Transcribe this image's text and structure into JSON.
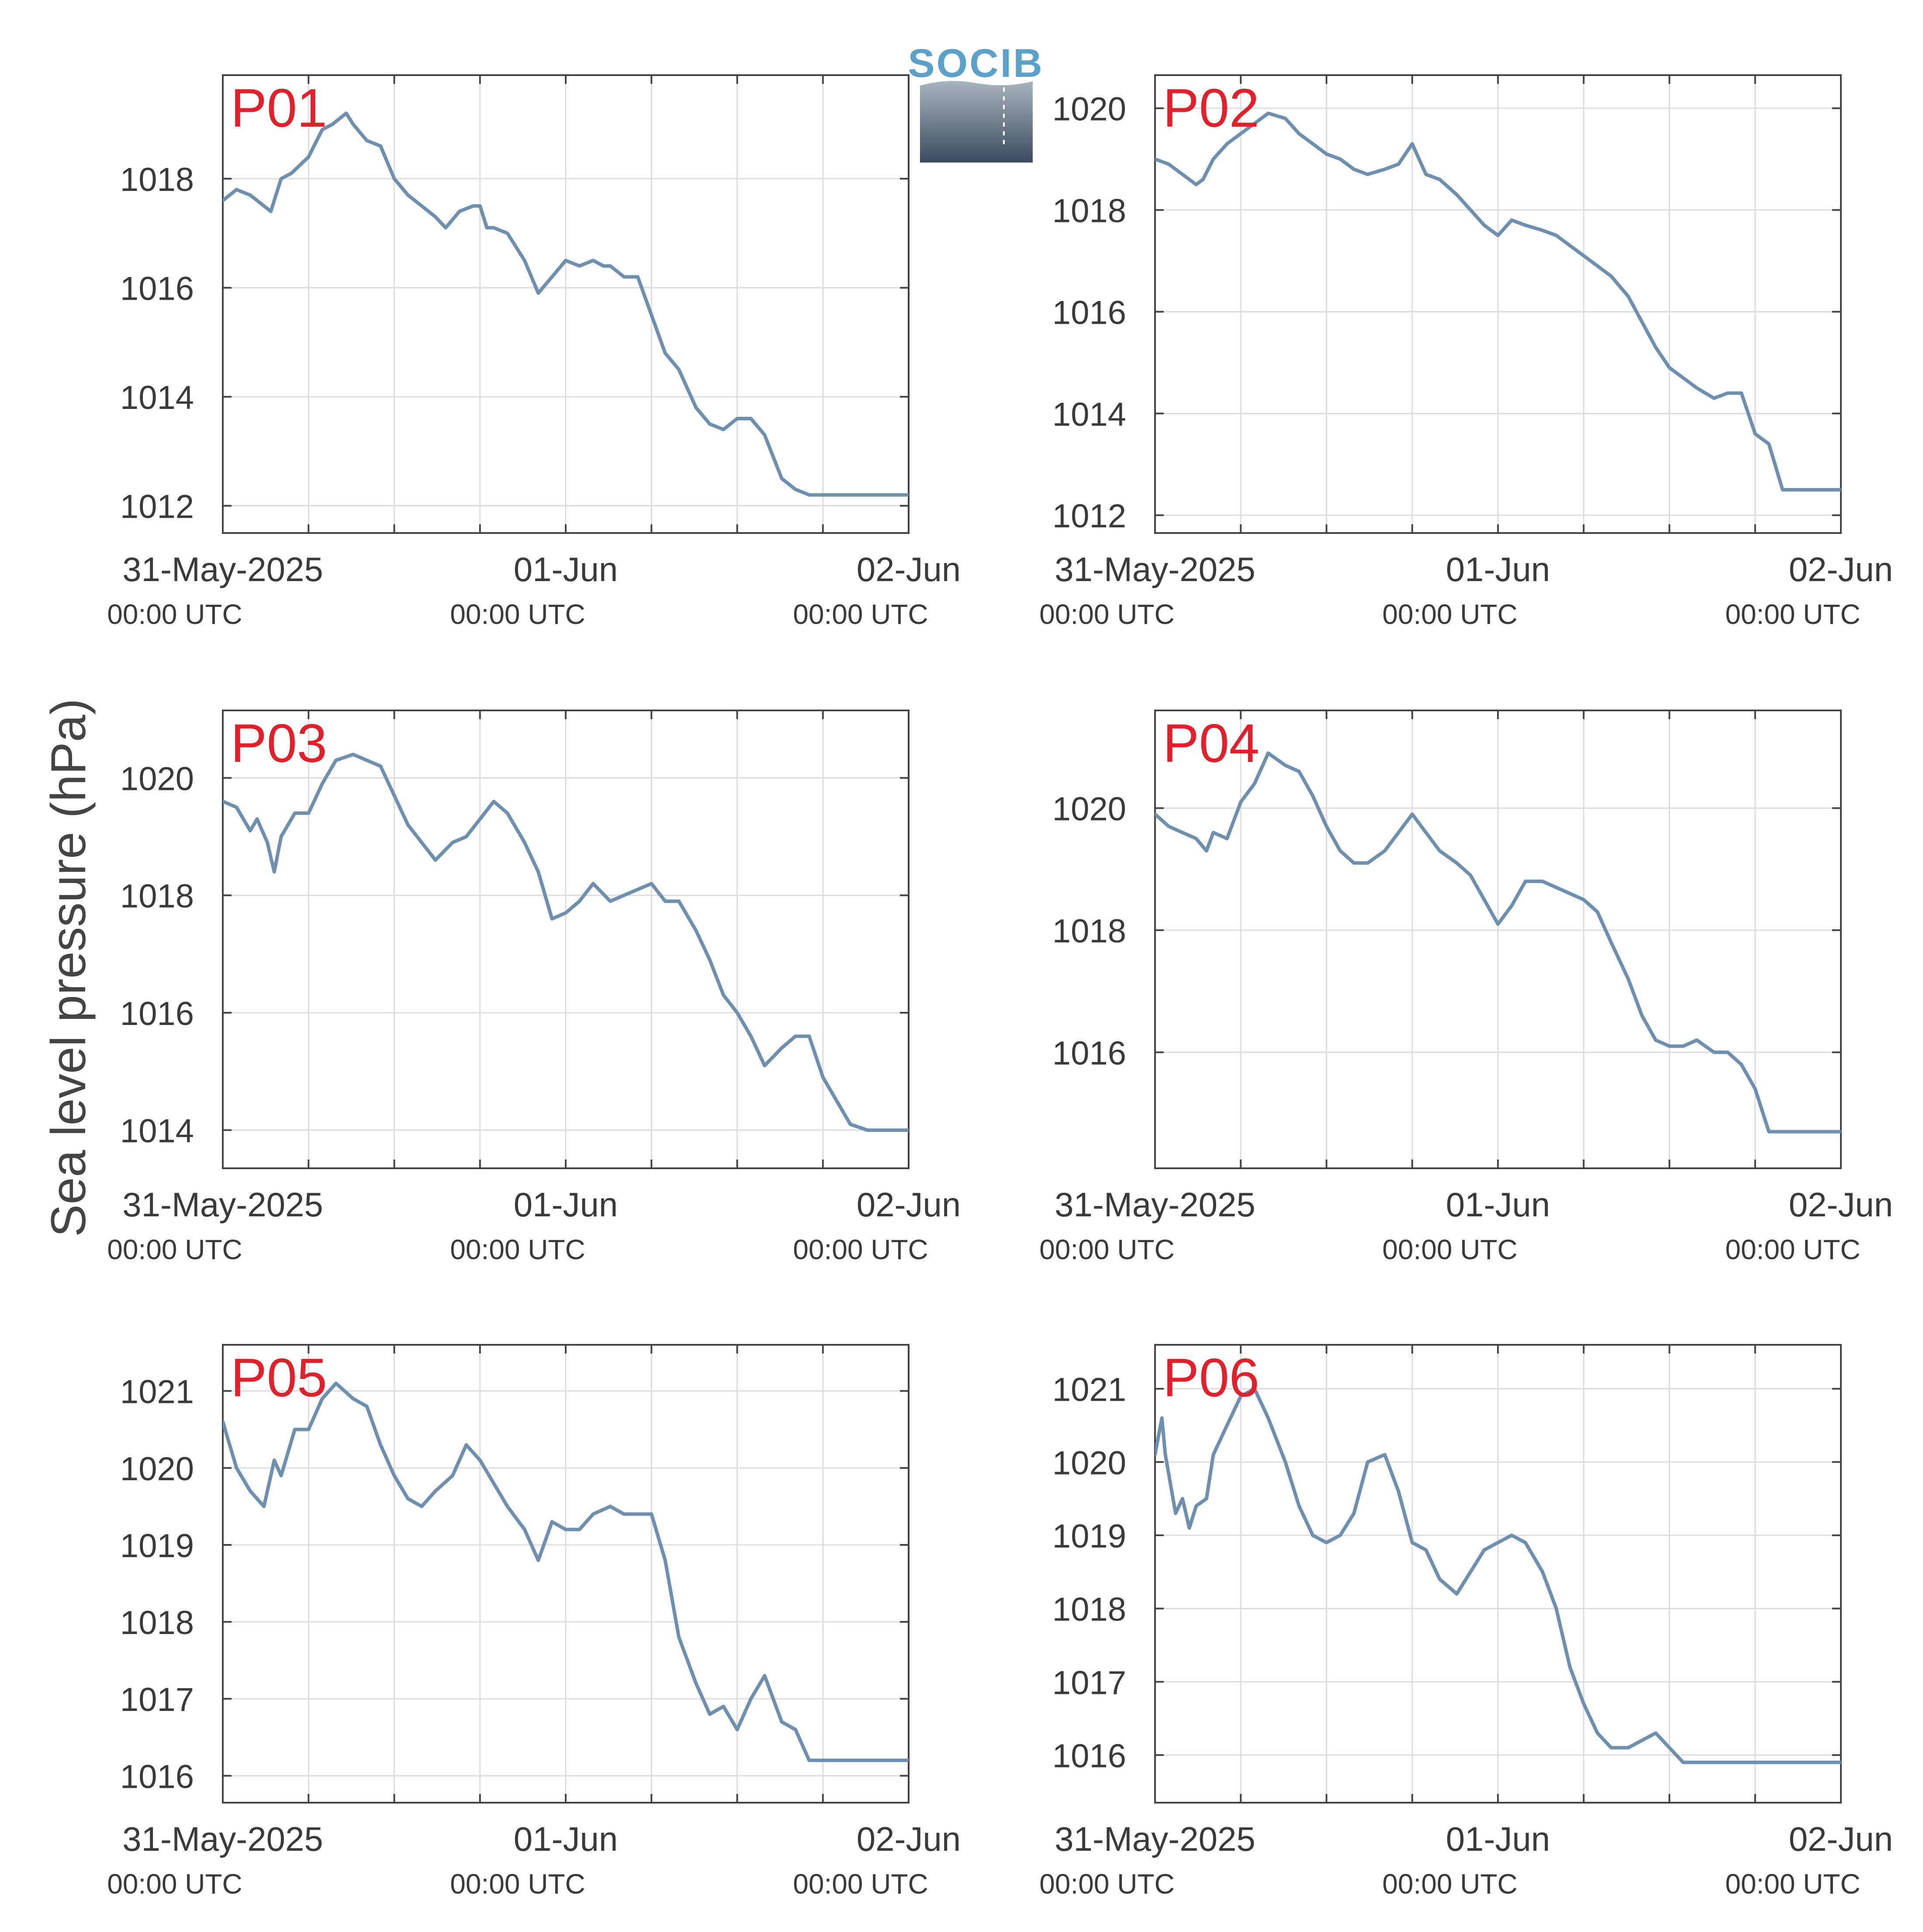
{
  "ylabel": "Sea level pressure (hPa)",
  "logo": {
    "text": "SOCIB",
    "colors": {
      "top": "#a9b4be",
      "bottom": "#3a4b5e",
      "text": "#5aa0c8"
    }
  },
  "colors": {
    "line": "#6f8fae",
    "grid": "#dddddd",
    "axis": "#444444",
    "panel_label": "#e0202a",
    "tick_text": "#3a3a3a"
  },
  "chart_data": [
    {
      "type": "line",
      "label": "P01",
      "x_ticks": [
        {
          "day": 0,
          "date": "31-May-2025",
          "time": "00:00 UTC"
        },
        {
          "day": 1,
          "date": "01-Jun",
          "time": "00:00 UTC"
        },
        {
          "day": 2,
          "date": "02-Jun",
          "time": "00:00 UTC"
        }
      ],
      "xlim": [
        0,
        2
      ],
      "ylim": [
        1011.5,
        1019.9
      ],
      "y_ticks": [
        1012,
        1014,
        1016,
        1018
      ],
      "x": [
        0,
        0.04,
        0.08,
        0.12,
        0.14,
        0.17,
        0.2,
        0.25,
        0.29,
        0.32,
        0.36,
        0.38,
        0.42,
        0.46,
        0.5,
        0.54,
        0.58,
        0.62,
        0.65,
        0.69,
        0.73,
        0.75,
        0.77,
        0.79,
        0.83,
        0.88,
        0.92,
        0.96,
        1.0,
        1.04,
        1.08,
        1.11,
        1.13,
        1.17,
        1.21,
        1.25,
        1.29,
        1.33,
        1.38,
        1.42,
        1.46,
        1.5,
        1.54,
        1.58,
        1.63,
        1.67,
        1.71,
        1.75,
        1.79,
        1.83,
        1.88,
        1.92,
        1.96,
        2.0
      ],
      "y": [
        1017.6,
        1017.8,
        1017.7,
        1017.5,
        1017.4,
        1018.0,
        1018.1,
        1018.4,
        1018.9,
        1019.0,
        1019.2,
        1019.0,
        1018.7,
        1018.6,
        1018.0,
        1017.7,
        1017.5,
        1017.3,
        1017.1,
        1017.4,
        1017.5,
        1017.5,
        1017.1,
        1017.1,
        1017.0,
        1016.5,
        1015.9,
        1016.2,
        1016.5,
        1016.4,
        1016.5,
        1016.4,
        1016.4,
        1016.2,
        1016.2,
        1015.5,
        1014.8,
        1014.5,
        1013.8,
        1013.5,
        1013.4,
        1013.6,
        1013.6,
        1013.3,
        1012.5,
        1012.3,
        1012.2,
        1012.2,
        1012.2,
        1012.2,
        1012.2,
        1012.2,
        1012.2,
        1012.2
      ]
    },
    {
      "type": "line",
      "label": "P02",
      "x_ticks": [
        {
          "day": 0,
          "date": "31-May-2025",
          "time": "00:00 UTC"
        },
        {
          "day": 1,
          "date": "01-Jun",
          "time": "00:00 UTC"
        },
        {
          "day": 2,
          "date": "02-Jun",
          "time": "00:00 UTC"
        }
      ],
      "xlim": [
        0,
        2
      ],
      "ylim": [
        1011.65,
        1020.65
      ],
      "y_ticks": [
        1012,
        1014,
        1016,
        1018,
        1020
      ],
      "x": [
        0,
        0.04,
        0.08,
        0.12,
        0.14,
        0.17,
        0.21,
        0.25,
        0.29,
        0.33,
        0.38,
        0.42,
        0.46,
        0.5,
        0.54,
        0.58,
        0.62,
        0.67,
        0.71,
        0.75,
        0.79,
        0.83,
        0.88,
        0.92,
        0.96,
        1.0,
        1.04,
        1.08,
        1.13,
        1.17,
        1.21,
        1.25,
        1.29,
        1.33,
        1.38,
        1.42,
        1.46,
        1.5,
        1.54,
        1.58,
        1.63,
        1.67,
        1.71,
        1.75,
        1.79,
        1.83,
        1.88,
        1.92,
        1.96,
        2.0
      ],
      "y": [
        1019.0,
        1018.9,
        1018.7,
        1018.5,
        1018.6,
        1019.0,
        1019.3,
        1019.5,
        1019.7,
        1019.9,
        1019.8,
        1019.5,
        1019.3,
        1019.1,
        1019.0,
        1018.8,
        1018.7,
        1018.8,
        1018.9,
        1019.3,
        1018.7,
        1018.6,
        1018.3,
        1018.0,
        1017.7,
        1017.5,
        1017.8,
        1017.7,
        1017.6,
        1017.5,
        1017.3,
        1017.1,
        1016.9,
        1016.7,
        1016.3,
        1015.8,
        1015.3,
        1014.9,
        1014.7,
        1014.5,
        1014.3,
        1014.4,
        1014.4,
        1013.6,
        1013.4,
        1012.5,
        1012.5,
        1012.5,
        1012.5,
        1012.5
      ]
    },
    {
      "type": "line",
      "label": "P03",
      "x_ticks": [
        {
          "day": 0,
          "date": "31-May-2025",
          "time": "00:00 UTC"
        },
        {
          "day": 1,
          "date": "01-Jun",
          "time": "00:00 UTC"
        },
        {
          "day": 2,
          "date": "02-Jun",
          "time": "00:00 UTC"
        }
      ],
      "xlim": [
        0,
        2
      ],
      "ylim": [
        1013.35,
        1021.15
      ],
      "y_ticks": [
        1014,
        1016,
        1018,
        1020
      ],
      "x": [
        0,
        0.04,
        0.08,
        0.1,
        0.13,
        0.15,
        0.17,
        0.21,
        0.25,
        0.29,
        0.33,
        0.38,
        0.42,
        0.46,
        0.5,
        0.54,
        0.58,
        0.62,
        0.67,
        0.71,
        0.75,
        0.79,
        0.83,
        0.88,
        0.92,
        0.96,
        1.0,
        1.04,
        1.08,
        1.13,
        1.17,
        1.21,
        1.25,
        1.29,
        1.33,
        1.38,
        1.42,
        1.46,
        1.5,
        1.54,
        1.58,
        1.63,
        1.67,
        1.71,
        1.75,
        1.79,
        1.83,
        1.88,
        1.92,
        1.96,
        2.0
      ],
      "y": [
        1019.6,
        1019.5,
        1019.1,
        1019.3,
        1018.9,
        1018.4,
        1019.0,
        1019.4,
        1019.4,
        1019.9,
        1020.3,
        1020.4,
        1020.3,
        1020.2,
        1019.7,
        1019.2,
        1018.9,
        1018.6,
        1018.9,
        1019.0,
        1019.3,
        1019.6,
        1019.4,
        1018.9,
        1018.4,
        1017.6,
        1017.7,
        1017.9,
        1018.2,
        1017.9,
        1018.0,
        1018.1,
        1018.2,
        1017.9,
        1017.9,
        1017.4,
        1016.9,
        1016.3,
        1016.0,
        1015.6,
        1015.1,
        1015.4,
        1015.6,
        1015.6,
        1014.9,
        1014.5,
        1014.1,
        1014.0,
        1014.0,
        1014.0,
        1014.0
      ]
    },
    {
      "type": "line",
      "label": "P04",
      "x_ticks": [
        {
          "day": 0,
          "date": "31-May-2025",
          "time": "00:00 UTC"
        },
        {
          "day": 1,
          "date": "01-Jun",
          "time": "00:00 UTC"
        },
        {
          "day": 2,
          "date": "02-Jun",
          "time": "00:00 UTC"
        }
      ],
      "xlim": [
        0,
        2
      ],
      "ylim": [
        1014.1,
        1021.6
      ],
      "y_ticks": [
        1016,
        1018,
        1020
      ],
      "x": [
        0,
        0.04,
        0.08,
        0.12,
        0.15,
        0.17,
        0.21,
        0.25,
        0.29,
        0.33,
        0.38,
        0.42,
        0.46,
        0.5,
        0.54,
        0.58,
        0.62,
        0.67,
        0.71,
        0.75,
        0.79,
        0.83,
        0.88,
        0.92,
        0.96,
        1.0,
        1.04,
        1.08,
        1.13,
        1.17,
        1.21,
        1.25,
        1.29,
        1.33,
        1.38,
        1.42,
        1.46,
        1.5,
        1.54,
        1.58,
        1.63,
        1.67,
        1.71,
        1.75,
        1.79,
        1.83,
        1.88,
        1.92,
        1.96,
        2.0
      ],
      "y": [
        1019.9,
        1019.7,
        1019.6,
        1019.5,
        1019.3,
        1019.6,
        1019.5,
        1020.1,
        1020.4,
        1020.9,
        1020.7,
        1020.6,
        1020.2,
        1019.7,
        1019.3,
        1019.1,
        1019.1,
        1019.3,
        1019.6,
        1019.9,
        1019.6,
        1019.3,
        1019.1,
        1018.9,
        1018.5,
        1018.1,
        1018.4,
        1018.8,
        1018.8,
        1018.7,
        1018.6,
        1018.5,
        1018.3,
        1017.8,
        1017.2,
        1016.6,
        1016.2,
        1016.1,
        1016.1,
        1016.2,
        1016.0,
        1016.0,
        1015.8,
        1015.4,
        1014.7,
        1014.7,
        1014.7,
        1014.7,
        1014.7,
        1014.7
      ]
    },
    {
      "type": "line",
      "label": "P05",
      "x_ticks": [
        {
          "day": 0,
          "date": "31-May-2025",
          "time": "00:00 UTC"
        },
        {
          "day": 1,
          "date": "01-Jun",
          "time": "00:00 UTC"
        },
        {
          "day": 2,
          "date": "02-Jun",
          "time": "00:00 UTC"
        }
      ],
      "xlim": [
        0,
        2
      ],
      "ylim": [
        1015.65,
        1021.6
      ],
      "y_ticks": [
        1016,
        1017,
        1018,
        1019,
        1020,
        1021
      ],
      "x": [
        0,
        0.04,
        0.08,
        0.12,
        0.15,
        0.17,
        0.21,
        0.25,
        0.29,
        0.33,
        0.38,
        0.42,
        0.46,
        0.5,
        0.54,
        0.58,
        0.62,
        0.67,
        0.71,
        0.75,
        0.79,
        0.83,
        0.88,
        0.92,
        0.96,
        1.0,
        1.04,
        1.08,
        1.13,
        1.17,
        1.21,
        1.25,
        1.29,
        1.33,
        1.38,
        1.42,
        1.46,
        1.5,
        1.54,
        1.58,
        1.63,
        1.67,
        1.71,
        1.75,
        1.79,
        1.83,
        1.88,
        1.92,
        1.96,
        2.0
      ],
      "y": [
        1020.6,
        1020.0,
        1019.7,
        1019.5,
        1020.1,
        1019.9,
        1020.5,
        1020.5,
        1020.9,
        1021.1,
        1020.9,
        1020.8,
        1020.3,
        1019.9,
        1019.6,
        1019.5,
        1019.7,
        1019.9,
        1020.3,
        1020.1,
        1019.8,
        1019.5,
        1019.2,
        1018.8,
        1019.3,
        1019.2,
        1019.2,
        1019.4,
        1019.5,
        1019.4,
        1019.4,
        1019.4,
        1018.8,
        1017.8,
        1017.2,
        1016.8,
        1016.9,
        1016.6,
        1017.0,
        1017.3,
        1016.7,
        1016.6,
        1016.2,
        1016.2,
        1016.2,
        1016.2,
        1016.2,
        1016.2,
        1016.2,
        1016.2
      ]
    },
    {
      "type": "line",
      "label": "P06",
      "x_ticks": [
        {
          "day": 0,
          "date": "31-May-2025",
          "time": "00:00 UTC"
        },
        {
          "day": 1,
          "date": "01-Jun",
          "time": "00:00 UTC"
        },
        {
          "day": 2,
          "date": "02-Jun",
          "time": "00:00 UTC"
        }
      ],
      "xlim": [
        0,
        2
      ],
      "ylim": [
        1015.35,
        1021.6
      ],
      "y_ticks": [
        1016,
        1017,
        1018,
        1019,
        1020,
        1021
      ],
      "x": [
        0,
        0.02,
        0.03,
        0.06,
        0.08,
        0.1,
        0.12,
        0.15,
        0.17,
        0.21,
        0.25,
        0.29,
        0.33,
        0.38,
        0.42,
        0.46,
        0.5,
        0.54,
        0.58,
        0.62,
        0.67,
        0.71,
        0.75,
        0.79,
        0.83,
        0.88,
        0.92,
        0.96,
        1.0,
        1.04,
        1.08,
        1.13,
        1.17,
        1.21,
        1.25,
        1.29,
        1.33,
        1.38,
        1.42,
        1.46,
        1.5,
        1.54,
        1.58,
        1.63,
        1.67,
        1.71,
        1.75,
        1.79,
        1.83,
        1.88,
        1.92,
        1.96,
        2.0
      ],
      "y": [
        1020.1,
        1020.6,
        1020.1,
        1019.3,
        1019.5,
        1019.1,
        1019.4,
        1019.5,
        1020.1,
        1020.5,
        1020.9,
        1021.0,
        1020.6,
        1020.0,
        1019.4,
        1019.0,
        1018.9,
        1019.0,
        1019.3,
        1020.0,
        1020.1,
        1019.6,
        1018.9,
        1018.8,
        1018.4,
        1018.2,
        1018.5,
        1018.8,
        1018.9,
        1019.0,
        1018.9,
        1018.5,
        1018.0,
        1017.2,
        1016.7,
        1016.3,
        1016.1,
        1016.1,
        1016.2,
        1016.3,
        1016.1,
        1015.9,
        1015.9,
        1015.9,
        1015.9,
        1015.9,
        1015.9,
        1015.9,
        1015.9,
        1015.9,
        1015.9,
        1015.9,
        1015.9
      ]
    }
  ]
}
